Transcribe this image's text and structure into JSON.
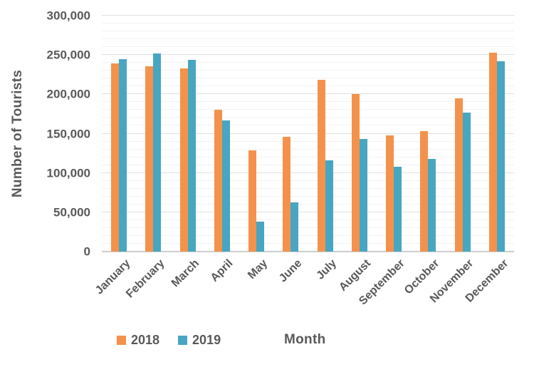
{
  "chart_data": {
    "type": "bar",
    "title": "",
    "xlabel": "Month",
    "ylabel": "Number of Tourists",
    "categories": [
      "January",
      "February",
      "March",
      "April",
      "May",
      "June",
      "July",
      "August",
      "September",
      "October",
      "November",
      "December"
    ],
    "series": [
      {
        "name": "2018",
        "color": "#F4924B",
        "values": [
          239000,
          236000,
          233000,
          180000,
          129000,
          146000,
          218000,
          200000,
          148000,
          153000,
          195000,
          253000
        ]
      },
      {
        "name": "2019",
        "color": "#47A6C2",
        "values": [
          245000,
          252000,
          244000,
          167000,
          38000,
          63000,
          116000,
          143000,
          108000,
          118000,
          177000,
          242000
        ]
      }
    ],
    "ylim": [
      0,
      300000
    ],
    "y_major_step": 50000,
    "y_minor_step": 10000,
    "grid": true,
    "legend_position": "bottom-left",
    "text_color": "#595959",
    "grid_minor_color": "#F2F2F2",
    "grid_major_color": "#E1E1E1",
    "axis_line_color": "#CDCDCD"
  }
}
